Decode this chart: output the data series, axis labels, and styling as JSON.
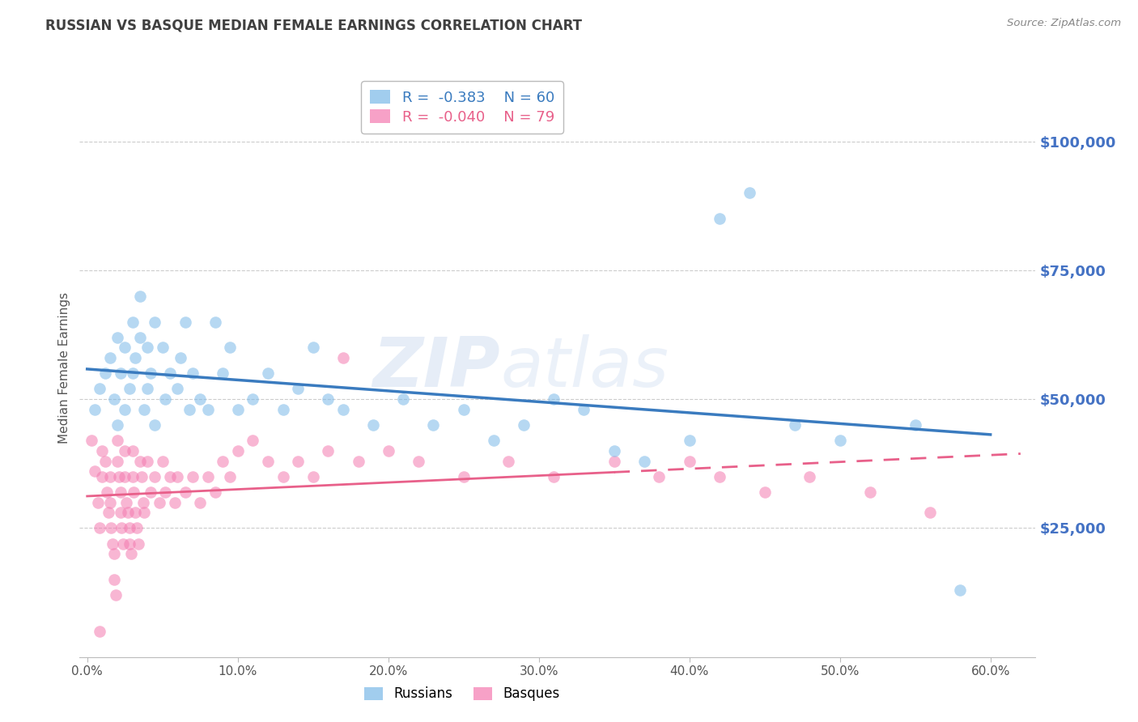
{
  "title": "RUSSIAN VS BASQUE MEDIAN FEMALE EARNINGS CORRELATION CHART",
  "source": "Source: ZipAtlas.com",
  "ylabel": "Median Female Earnings",
  "xlabel_ticks": [
    "0.0%",
    "10.0%",
    "20.0%",
    "30.0%",
    "40.0%",
    "50.0%",
    "60.0%"
  ],
  "xlabel_vals": [
    0.0,
    0.1,
    0.2,
    0.3,
    0.4,
    0.5,
    0.6
  ],
  "ytick_labels": [
    "$25,000",
    "$50,000",
    "$75,000",
    "$100,000"
  ],
  "ytick_vals": [
    25000,
    50000,
    75000,
    100000
  ],
  "ylim": [
    0,
    112000
  ],
  "xlim": [
    -0.005,
    0.63
  ],
  "russian_R": "-0.383",
  "russian_N": "60",
  "basque_R": "-0.040",
  "basque_N": "79",
  "russian_color": "#7ab8e8",
  "basque_color": "#f47ab0",
  "russian_line_color": "#3a7bbf",
  "basque_line_color": "#e8608a",
  "watermark_zip": "ZIP",
  "watermark_atlas": "atlas",
  "background_color": "#ffffff",
  "grid_color": "#cccccc",
  "title_color": "#404040",
  "axis_label_color": "#555555",
  "right_axis_color": "#4472c4",
  "russians_x": [
    0.005,
    0.008,
    0.012,
    0.015,
    0.018,
    0.02,
    0.02,
    0.022,
    0.025,
    0.025,
    0.028,
    0.03,
    0.03,
    0.032,
    0.035,
    0.035,
    0.038,
    0.04,
    0.04,
    0.042,
    0.045,
    0.045,
    0.05,
    0.052,
    0.055,
    0.06,
    0.062,
    0.065,
    0.068,
    0.07,
    0.075,
    0.08,
    0.085,
    0.09,
    0.095,
    0.1,
    0.11,
    0.12,
    0.13,
    0.14,
    0.15,
    0.16,
    0.17,
    0.19,
    0.21,
    0.23,
    0.25,
    0.27,
    0.29,
    0.31,
    0.33,
    0.35,
    0.37,
    0.4,
    0.42,
    0.44,
    0.47,
    0.5,
    0.55,
    0.58
  ],
  "russians_y": [
    48000,
    52000,
    55000,
    58000,
    50000,
    62000,
    45000,
    55000,
    60000,
    48000,
    52000,
    65000,
    55000,
    58000,
    62000,
    70000,
    48000,
    60000,
    52000,
    55000,
    65000,
    45000,
    60000,
    50000,
    55000,
    52000,
    58000,
    65000,
    48000,
    55000,
    50000,
    48000,
    65000,
    55000,
    60000,
    48000,
    50000,
    55000,
    48000,
    52000,
    60000,
    50000,
    48000,
    45000,
    50000,
    45000,
    48000,
    42000,
    45000,
    50000,
    48000,
    40000,
    38000,
    42000,
    85000,
    90000,
    45000,
    42000,
    45000,
    13000
  ],
  "basques_x": [
    0.003,
    0.005,
    0.007,
    0.008,
    0.01,
    0.01,
    0.012,
    0.013,
    0.014,
    0.015,
    0.015,
    0.016,
    0.017,
    0.018,
    0.018,
    0.019,
    0.02,
    0.02,
    0.021,
    0.022,
    0.022,
    0.023,
    0.024,
    0.025,
    0.025,
    0.026,
    0.027,
    0.028,
    0.028,
    0.029,
    0.03,
    0.03,
    0.031,
    0.032,
    0.033,
    0.034,
    0.035,
    0.036,
    0.037,
    0.038,
    0.04,
    0.042,
    0.045,
    0.048,
    0.05,
    0.052,
    0.055,
    0.058,
    0.06,
    0.065,
    0.07,
    0.075,
    0.08,
    0.085,
    0.09,
    0.095,
    0.1,
    0.11,
    0.12,
    0.13,
    0.14,
    0.15,
    0.16,
    0.17,
    0.18,
    0.2,
    0.22,
    0.25,
    0.28,
    0.31,
    0.35,
    0.38,
    0.4,
    0.42,
    0.45,
    0.48,
    0.52,
    0.56,
    0.008
  ],
  "basques_y": [
    42000,
    36000,
    30000,
    25000,
    40000,
    35000,
    38000,
    32000,
    28000,
    35000,
    30000,
    25000,
    22000,
    20000,
    15000,
    12000,
    42000,
    38000,
    35000,
    32000,
    28000,
    25000,
    22000,
    40000,
    35000,
    30000,
    28000,
    25000,
    22000,
    20000,
    40000,
    35000,
    32000,
    28000,
    25000,
    22000,
    38000,
    35000,
    30000,
    28000,
    38000,
    32000,
    35000,
    30000,
    38000,
    32000,
    35000,
    30000,
    35000,
    32000,
    35000,
    30000,
    35000,
    32000,
    38000,
    35000,
    40000,
    42000,
    38000,
    35000,
    38000,
    35000,
    40000,
    58000,
    38000,
    40000,
    38000,
    35000,
    38000,
    35000,
    38000,
    35000,
    38000,
    35000,
    32000,
    35000,
    32000,
    28000,
    5000
  ]
}
